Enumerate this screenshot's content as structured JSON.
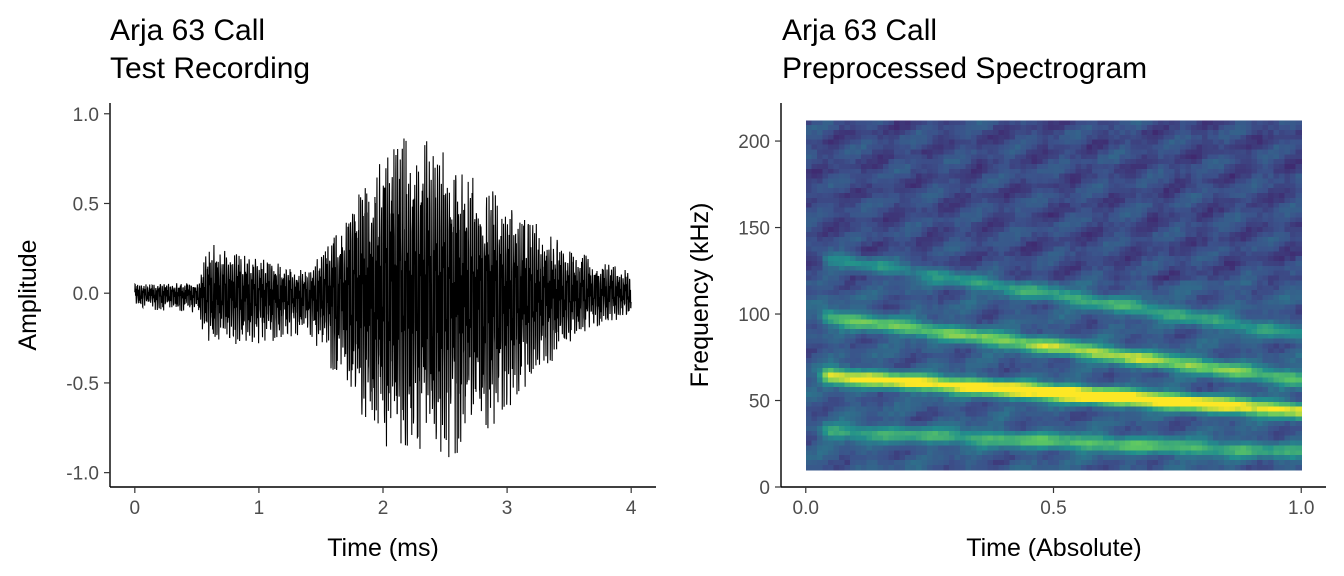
{
  "chart_data": [
    {
      "type": "line",
      "title": "Arja 63 Call",
      "subtitle": "Test Recording",
      "xlabel": "Time (ms)",
      "ylabel": "Amplitude",
      "xlim": [
        -0.2,
        4.2
      ],
      "ylim": [
        -1.08,
        1.06
      ],
      "x_ticks": [
        0,
        1,
        2,
        3,
        4
      ],
      "x_tick_labels": [
        "0",
        "1",
        "2",
        "3",
        "4"
      ],
      "y_ticks": [
        -1.0,
        -0.5,
        0.0,
        0.5,
        1.0
      ],
      "y_tick_labels": [
        "-1.0",
        "-0.5",
        "0.0",
        "0.5",
        "1.0"
      ],
      "grid": false,
      "line_color": "#000000",
      "series": [
        {
          "envelope_time_ms": [
            0.0,
            0.5,
            0.6,
            0.9,
            1.4,
            1.6,
            1.9,
            2.1,
            2.3,
            2.6,
            3.0,
            3.3,
            3.6,
            4.0
          ],
          "envelope_upper": [
            0.05,
            0.06,
            0.28,
            0.22,
            0.12,
            0.32,
            0.72,
            0.85,
            0.95,
            0.7,
            0.52,
            0.35,
            0.22,
            0.12
          ],
          "envelope_lower": [
            -0.08,
            -0.12,
            -0.32,
            -0.3,
            -0.22,
            -0.45,
            -0.78,
            -0.93,
            -0.98,
            -0.9,
            -0.68,
            -0.42,
            -0.22,
            -0.12
          ]
        }
      ]
    },
    {
      "type": "heatmap",
      "title": "Arja 63 Call",
      "subtitle": "Preprocessed Spectrogram",
      "xlabel": "Time (Absolute)",
      "ylabel": "Frequency (kHz)",
      "xlim": [
        -0.05,
        1.05
      ],
      "ylim": [
        0,
        222
      ],
      "x_ticks": [
        0.0,
        0.5,
        1.0
      ],
      "x_tick_labels": [
        "0.0",
        "0.5",
        "1.0"
      ],
      "y_ticks": [
        0,
        50,
        100,
        150,
        200
      ],
      "y_tick_labels": [
        "0",
        "50",
        "100",
        "150",
        "200"
      ],
      "grid": false,
      "data_extent_x": [
        0.0,
        1.0
      ],
      "data_extent_y": [
        10,
        212
      ],
      "colormap": [
        "#440154",
        "#3b528b",
        "#21908c",
        "#5dc863",
        "#fde725"
      ],
      "harmonics": [
        {
          "start_time": 0.05,
          "end_time": 1.0,
          "start_khz": 64,
          "end_khz": 44,
          "peak": 1.0
        },
        {
          "start_time": 0.05,
          "end_time": 1.0,
          "start_khz": 98,
          "end_khz": 62,
          "peak": 0.62
        },
        {
          "start_time": 0.05,
          "end_time": 1.0,
          "start_khz": 132,
          "end_khz": 88,
          "peak": 0.35
        },
        {
          "start_time": 0.05,
          "end_time": 1.0,
          "start_khz": 32,
          "end_khz": 20,
          "peak": 0.45
        }
      ]
    }
  ]
}
